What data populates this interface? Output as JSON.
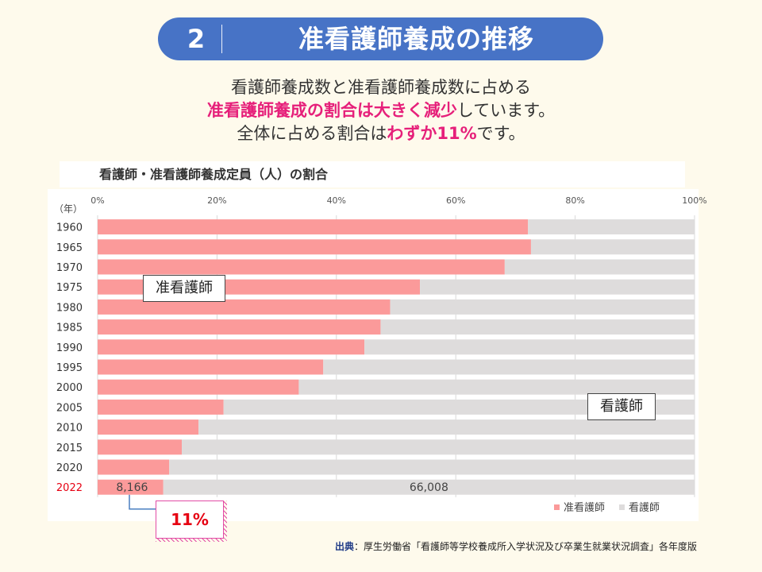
{
  "header": {
    "number": "2",
    "title": "准看護師養成の推移"
  },
  "lead": {
    "line1": "看護師養成数と准看護師養成数に占める",
    "line2_hl": "准看護師養成の割合は大きく減少",
    "line2_rest": "しています。",
    "line3_pre": "全体に占める割合は",
    "line3_hl": "わずか11%",
    "line3_post": "です。"
  },
  "chart_data": {
    "type": "bar",
    "orientation": "horizontal",
    "stacked": "percent",
    "title": "看護師・准看護師養成定員（人）の割合",
    "ylabel": "（年）",
    "categories": [
      "1960",
      "1965",
      "1970",
      "1975",
      "1980",
      "1985",
      "1990",
      "1995",
      "2000",
      "2005",
      "2010",
      "2015",
      "2020",
      "2022"
    ],
    "highlight_category": "2022",
    "x_ticks": [
      "0%",
      "20%",
      "40%",
      "60%",
      "80%",
      "100%"
    ],
    "xlim": [
      0,
      100
    ],
    "grid": true,
    "series": [
      {
        "name": "准看護師",
        "color": "#fb9a9a",
        "values": [
          72.1,
          72.6,
          68.2,
          54.0,
          49.0,
          47.4,
          44.7,
          37.8,
          33.7,
          21.1,
          16.9,
          14.1,
          12.0,
          11.0
        ]
      },
      {
        "name": "看護師",
        "color": "#dedcdc",
        "values": [
          27.9,
          27.4,
          31.8,
          46.0,
          51.0,
          52.6,
          55.3,
          62.2,
          66.3,
          78.9,
          83.1,
          85.9,
          88.0,
          89.0
        ]
      }
    ],
    "data_labels": {
      "2022": {
        "准看護師": "8,166",
        "看護師": "66,008"
      }
    },
    "legend": "bottom-right"
  },
  "annotations": {
    "zh_label": "准看護師",
    "kg_label": "看護師",
    "pct_2022": "11%"
  },
  "source": {
    "label": "出典",
    "text": "：厚生労働省「看護師等学校養成所入学状況及び卒業生就業状況調査」各年度版"
  }
}
